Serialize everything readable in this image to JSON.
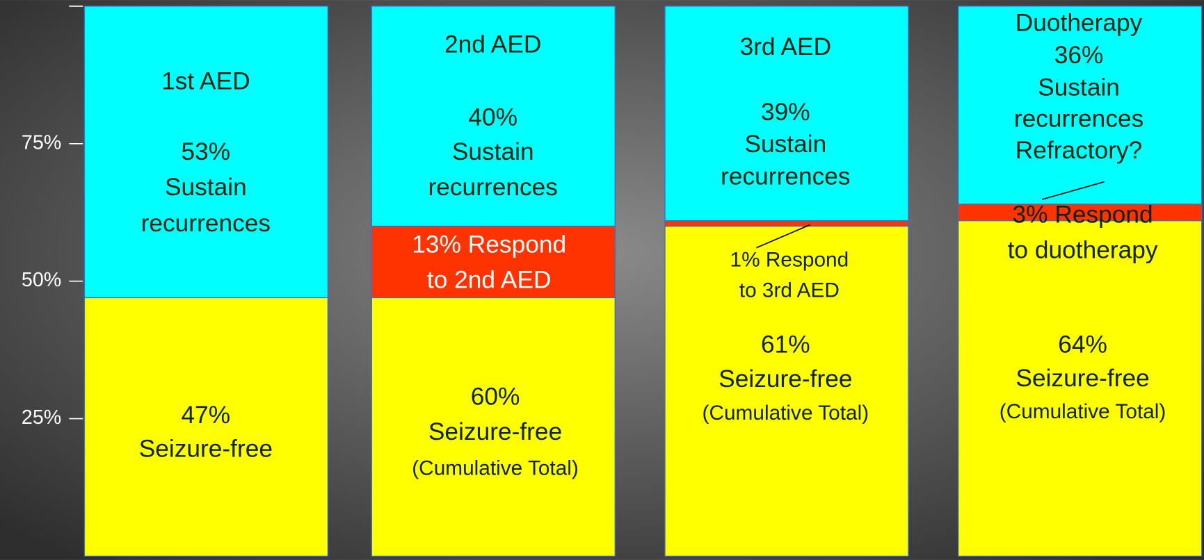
{
  "chart_data": {
    "type": "bar",
    "stacked": true,
    "categories": [
      null,
      null,
      null,
      null
    ],
    "series": [
      {
        "color": "#ffff00",
        "values": [
          47,
          47,
          60,
          61
        ]
      },
      {
        "color": "#ff3300",
        "values": [
          null,
          13,
          1,
          3
        ]
      },
      {
        "color": "#00ffff",
        "values": [
          53,
          40,
          39,
          36
        ]
      }
    ],
    "ylim": [
      0,
      100
    ],
    "yticks": [
      {
        "value": 25,
        "label": "25%"
      },
      {
        "value": 50,
        "label": "50%"
      },
      {
        "value": 75,
        "label": "75%"
      }
    ],
    "annotations": [
      {
        "lines": [
          "1st AED",
          "53%",
          "Sustain",
          "recurrences"
        ]
      },
      {
        "lines": [
          "47%",
          "Seizure-free"
        ]
      },
      {
        "lines": [
          "2nd AED",
          "40%",
          "Sustain",
          "recurrences"
        ]
      },
      {
        "lines": [
          "13% Respond",
          "to 2nd AED"
        ]
      },
      {
        "lines": [
          "60%",
          "Seizure-free",
          "(Cumulative Total)"
        ]
      },
      {
        "lines": [
          "3rd AED",
          "39%",
          "Sustain",
          "recurrences"
        ]
      },
      {
        "lines": [
          "1% Respond",
          "to 3rd AED"
        ]
      },
      {
        "lines": [
          "61%",
          "Seizure-free",
          "(Cumulative Total)"
        ]
      },
      {
        "lines": [
          "Duotherapy",
          "36%",
          "Sustain",
          "recurrences",
          "Refractory?"
        ]
      },
      {
        "lines": [
          "3% Respond",
          "to duotherapy"
        ]
      },
      {
        "lines": [
          "64%",
          "Seizure-free",
          "(Cumulative Total)"
        ]
      }
    ]
  }
}
